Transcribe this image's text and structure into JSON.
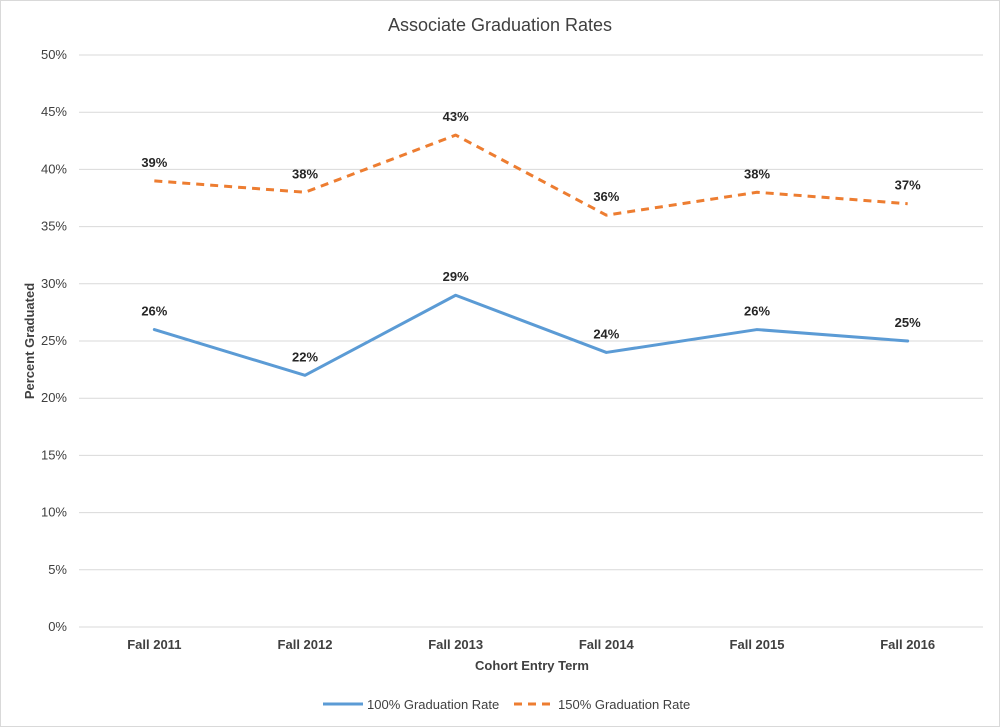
{
  "chart_data": {
    "type": "line",
    "title": "Associate Graduation Rates",
    "xlabel": "Cohort Entry Term",
    "ylabel": "Percent Graduated",
    "categories": [
      "Fall 2011",
      "Fall 2012",
      "Fall 2013",
      "Fall 2014",
      "Fall 2015",
      "Fall 2016"
    ],
    "ylim": [
      0,
      50
    ],
    "y_ticks": [
      0,
      5,
      10,
      15,
      20,
      25,
      30,
      35,
      40,
      45,
      50
    ],
    "y_tick_labels": [
      "0%",
      "5%",
      "10%",
      "15%",
      "20%",
      "25%",
      "30%",
      "35%",
      "40%",
      "45%",
      "50%"
    ],
    "grid": true,
    "legend_position": "bottom",
    "series": [
      {
        "name": "100% Graduation Rate",
        "values": [
          26,
          22,
          29,
          24,
          26,
          25
        ],
        "labels": [
          "26%",
          "22%",
          "29%",
          "24%",
          "26%",
          "25%"
        ],
        "color": "#5b9bd5",
        "style": "solid"
      },
      {
        "name": "150% Graduation Rate",
        "values": [
          39,
          38,
          43,
          36,
          38,
          37
        ],
        "labels": [
          "39%",
          "38%",
          "43%",
          "36%",
          "38%",
          "37%"
        ],
        "color": "#ed7d31",
        "style": "dashed"
      }
    ]
  }
}
